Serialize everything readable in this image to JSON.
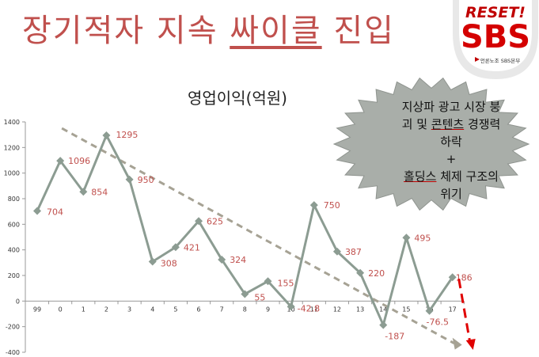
{
  "headline": {
    "part1": "장기적자 지속 ",
    "part2": "싸이클",
    "part3": " 진입"
  },
  "logo": {
    "top_text": "RESET!",
    "big_text": "SBS",
    "sub_text": "언론노조 SBS본부"
  },
  "callout": {
    "line1": "지상파 광고 시장 붕",
    "line2a": "괴 및 ",
    "line2b": "콘텐츠",
    "line2c": " 경쟁력",
    "line3": "하락",
    "line4": "+",
    "line5a": "홀딩스",
    "line5b": " 체제 구조의",
    "line6": "위기"
  },
  "chart_data": {
    "type": "line",
    "title": "영업이익(억원)",
    "categories": [
      "99",
      "0",
      "1",
      "2",
      "3",
      "4",
      "5",
      "6",
      "7",
      "8",
      "9",
      "10",
      "11",
      "12",
      "13",
      "14",
      "15",
      "16",
      "17"
    ],
    "series": [
      {
        "values": [
          704,
          1096,
          854,
          1295,
          950,
          308,
          421,
          625,
          324,
          55,
          155,
          -42.8,
          750,
          387,
          220,
          -187,
          495,
          -76.5,
          186
        ]
      }
    ],
    "data_labels": [
      "704",
      "1096",
      "854",
      "1295",
      "950",
      "308",
      "421",
      "625",
      "324",
      "55",
      "155",
      "-42.8",
      "750",
      "387",
      "220",
      "-187",
      "495",
      "-76.5",
      "186"
    ],
    "ylim": [
      -400,
      1400
    ],
    "yticks": [
      -400,
      -200,
      0,
      200,
      400,
      600,
      800,
      1000,
      1200,
      1400
    ],
    "trend_arrow": "gray dashed downward trend",
    "forecast_arrow": "red dashed downward",
    "colors": {
      "line": "#8c9c92",
      "label": "#c0504d",
      "trend": "#a6a294",
      "arrow": "#e00000",
      "axis": "#999999"
    }
  }
}
